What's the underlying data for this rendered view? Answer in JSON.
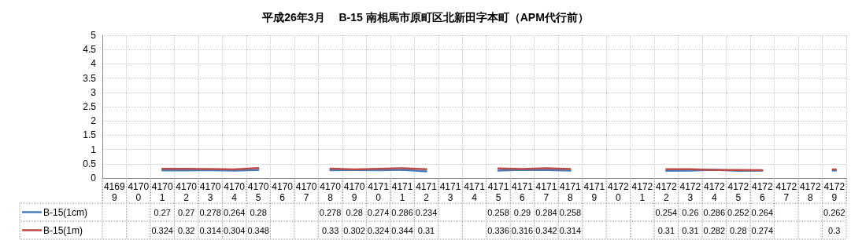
{
  "chart_data": {
    "type": "line",
    "title": "平成26年3月　 B-15 南相馬市原町区北新田字本町（APM代行前）",
    "categories": [
      "41699",
      "41700",
      "41701",
      "41702",
      "41703",
      "41704",
      "41705",
      "41706",
      "41707",
      "41708",
      "41709",
      "41710",
      "41711",
      "41712",
      "41713",
      "41714",
      "41715",
      "41716",
      "41717",
      "41718",
      "41719",
      "41720",
      "41721",
      "41722",
      "41723",
      "41724",
      "41725",
      "41726",
      "41727",
      "41728",
      "41729"
    ],
    "series": [
      {
        "name": "B-15(1cm)",
        "color": "#4a7ebb",
        "values": [
          null,
          null,
          0.27,
          0.27,
          0.278,
          0.264,
          0.28,
          null,
          null,
          0.278,
          0.28,
          0.274,
          0.286,
          0.234,
          null,
          null,
          0.258,
          0.29,
          0.284,
          0.258,
          null,
          null,
          null,
          0.254,
          0.26,
          0.286,
          0.252,
          0.264,
          null,
          null,
          0.262
        ]
      },
      {
        "name": "B-15(1m)",
        "color": "#be4b48",
        "values": [
          null,
          null,
          0.324,
          0.32,
          0.314,
          0.304,
          0.348,
          null,
          null,
          0.33,
          0.302,
          0.324,
          0.344,
          0.31,
          null,
          null,
          0.336,
          0.316,
          0.342,
          0.314,
          null,
          null,
          null,
          0.31,
          0.31,
          0.282,
          0.28,
          0.274,
          null,
          null,
          0.3
        ]
      }
    ],
    "ylim": [
      0,
      5
    ],
    "yticks": [
      0,
      0.5,
      1,
      1.5,
      2,
      2.5,
      3,
      3.5,
      4,
      4.5,
      5
    ],
    "grid": true,
    "legend": "bottom left",
    "marker": "none",
    "line_style": "solid",
    "data_labels": true
  }
}
